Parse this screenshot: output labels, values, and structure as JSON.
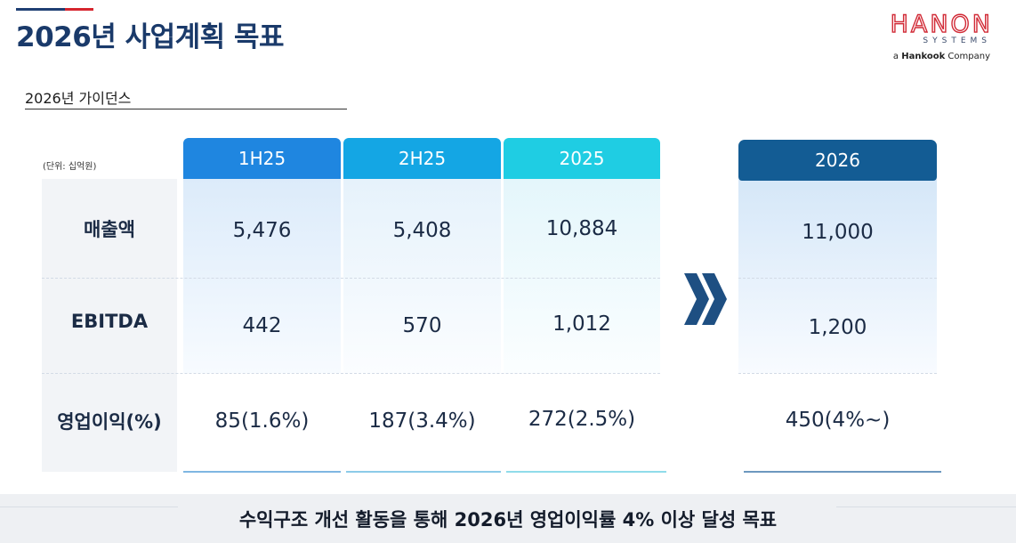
{
  "header": {
    "title": "2026년 사업계획 목표"
  },
  "logo": {
    "wordmark": "HANON",
    "subtitle": "SYSTEMS",
    "tagline_prefix": "a",
    "tagline_brand": "Hankook",
    "tagline_suffix": "Company"
  },
  "section": {
    "title": "2026년 가이던스",
    "unit": "(단위: 십억원)"
  },
  "table": {
    "row_labels": [
      "매출액",
      "EBITDA",
      "영업이익(%)"
    ],
    "columns": [
      {
        "header": "1H25",
        "values": [
          "5,476",
          "442",
          "85(1.6%)"
        ],
        "color": "#1f86e0"
      },
      {
        "header": "2H25",
        "values": [
          "5,408",
          "570",
          "187(3.4%)"
        ],
        "color": "#14a6e4"
      },
      {
        "header": "2025",
        "values": [
          "10,884",
          "1,012",
          "272(2.5%)"
        ],
        "color": "#1fcde3"
      },
      {
        "header": "2026",
        "values": [
          "11,000",
          "1,200",
          "450(4%~)"
        ],
        "color": "#135c94"
      }
    ]
  },
  "footer": {
    "message": "수익구조 개선 활동을 통해 2026년 영업이익률 4% 이상 달성 목표"
  },
  "colors": {
    "title_navy": "#1a3a6a",
    "accent_red": "#d6252e",
    "chevron_navy": "#1e4f82"
  }
}
